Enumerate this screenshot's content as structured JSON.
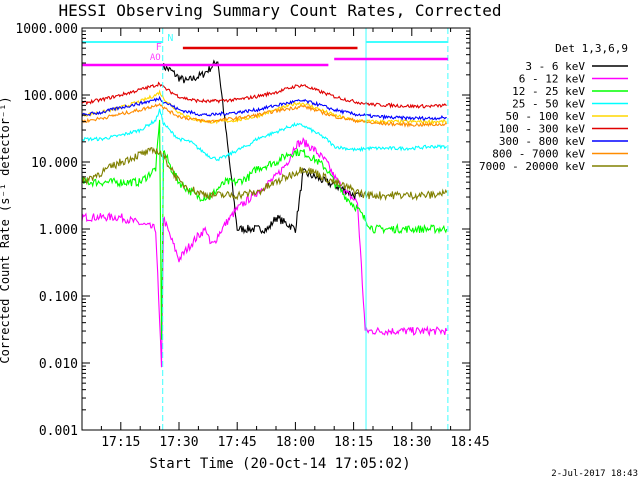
{
  "chart_data": {
    "type": "line",
    "title": "HESSI Observing Summary Count Rates, Corrected",
    "xlabel": "Start Time (20-Oct-14 17:05:02)",
    "ylabel": "Corrected Count Rate (s⁻¹ detector⁻¹)",
    "y_scale": "log",
    "ylim": [
      0.001,
      1000
    ],
    "xlim_minutes_after_17_00": [
      5,
      105
    ],
    "x_tick_labels": [
      "17:15",
      "17:30",
      "17:45",
      "18:00",
      "18:15",
      "18:30",
      "18:45"
    ],
    "x_tick_minutes": [
      15,
      30,
      45,
      60,
      75,
      90,
      105
    ],
    "y_tick_labels": [
      "0.001",
      "0.010",
      "0.100",
      "1.000",
      "10.000",
      "100.000",
      "1000.000"
    ],
    "y_tick_values": [
      0.001,
      0.01,
      0.1,
      1,
      10,
      100,
      1000
    ],
    "legend_title": "Det 1,3,6,9",
    "legend_position": "right",
    "footer": "2-Jul-2017 18:43",
    "flag_labels": {
      "F": "F",
      "N": "N",
      "AO": "AO"
    },
    "flag_colors": {
      "F": "#ff40ff",
      "N": "#40ffff",
      "AO": "#ff40ff",
      "magenta_bar": "#ff00ff",
      "red_bar": "#e00000"
    },
    "series": [
      {
        "name": "3 - 6 keV",
        "color": "#000000",
        "x": [
          25.8,
          28,
          30,
          32,
          34,
          36,
          38,
          40,
          45,
          50,
          53,
          55,
          60,
          62,
          65,
          68,
          70,
          73,
          75,
          77
        ],
        "values": [
          270,
          230,
          180,
          160,
          180,
          200,
          250,
          330,
          1.0,
          1.0,
          1.0,
          1.5,
          1.0,
          7,
          6,
          5,
          4.5,
          3.8,
          3.2,
          3.0
        ]
      },
      {
        "name": "6 - 12 keV",
        "color": "#ff00ff",
        "x": [
          5,
          10,
          15,
          20,
          24,
          25.5,
          26,
          27,
          29,
          30,
          32,
          35,
          37,
          38,
          39,
          40,
          42,
          45,
          48,
          50,
          55,
          58,
          60,
          62,
          65,
          68,
          70,
          73,
          76,
          78,
          80,
          85,
          90,
          95,
          99
        ],
        "values": [
          1.5,
          1.5,
          1.5,
          1.2,
          1.0,
          0.008,
          1.5,
          1.0,
          0.5,
          0.35,
          0.5,
          0.8,
          1.0,
          0.6,
          0.6,
          0.8,
          1.2,
          2.0,
          2.8,
          3.5,
          6,
          10,
          18,
          20,
          15,
          10,
          6,
          3.5,
          2.5,
          0.03,
          0.03,
          0.03,
          0.03,
          0.03,
          0.03
        ]
      },
      {
        "name": "12 - 25 keV",
        "color": "#00ff00",
        "x": [
          5,
          10,
          15,
          20,
          24,
          25,
          25.5,
          26,
          28,
          30,
          32,
          35,
          38,
          40,
          42,
          45,
          48,
          50,
          55,
          58,
          60,
          62,
          65,
          68,
          70,
          73,
          76,
          77.5,
          80,
          85,
          90,
          95,
          99
        ],
        "values": [
          5,
          5,
          5,
          5,
          8,
          40,
          0.02,
          15,
          8,
          5,
          4,
          3,
          3,
          4,
          5,
          5,
          6,
          8,
          10,
          13,
          14,
          14,
          11,
          8,
          5,
          3,
          2,
          1.5,
          1.0,
          1.0,
          1.0,
          1.0,
          1.0
        ]
      },
      {
        "name": "25 - 50 keV",
        "color": "#00ffff",
        "x": [
          5,
          10,
          15,
          20,
          24,
          25,
          26,
          28,
          30,
          33,
          35,
          38,
          40,
          42,
          45,
          48,
          50,
          55,
          58,
          60,
          62,
          65,
          68,
          70,
          73,
          76,
          78,
          80,
          85,
          90,
          95,
          99
        ],
        "values": [
          22,
          22,
          25,
          30,
          42,
          60,
          38,
          28,
          22,
          20,
          16,
          12,
          11,
          12,
          15,
          18,
          22,
          28,
          33,
          36,
          35,
          28,
          22,
          17,
          16,
          15,
          16,
          16,
          16,
          16,
          17,
          17
        ]
      },
      {
        "name": "50 - 100 keV",
        "color": "#ffd700",
        "x": [
          5,
          10,
          15,
          20,
          24,
          25,
          26,
          28,
          30,
          33,
          35,
          38,
          40,
          45,
          50,
          55,
          60,
          62,
          65,
          70,
          75,
          80,
          85,
          90,
          95,
          99
        ],
        "values": [
          50,
          55,
          65,
          80,
          100,
          110,
          90,
          70,
          55,
          45,
          42,
          40,
          40,
          42,
          48,
          60,
          75,
          75,
          65,
          50,
          42,
          40,
          40,
          40,
          40,
          40
        ]
      },
      {
        "name": "100 - 300 keV",
        "color": "#e00000",
        "x": [
          5,
          10,
          15,
          20,
          24,
          25,
          26,
          28,
          30,
          33,
          35,
          38,
          40,
          45,
          50,
          55,
          60,
          62,
          65,
          70,
          75,
          80,
          85,
          90,
          95,
          99
        ],
        "values": [
          75,
          85,
          100,
          120,
          140,
          150,
          130,
          110,
          95,
          85,
          82,
          80,
          82,
          85,
          95,
          110,
          135,
          140,
          120,
          95,
          80,
          72,
          70,
          68,
          68,
          70
        ]
      },
      {
        "name": "300 - 800 keV",
        "color": "#0000ff",
        "x": [
          5,
          10,
          15,
          20,
          24,
          25,
          26,
          28,
          30,
          33,
          35,
          38,
          40,
          45,
          50,
          55,
          60,
          62,
          65,
          70,
          75,
          80,
          85,
          90,
          95,
          99
        ],
        "values": [
          50,
          55,
          65,
          75,
          85,
          90,
          80,
          70,
          60,
          55,
          52,
          50,
          52,
          55,
          60,
          70,
          80,
          82,
          75,
          60,
          52,
          48,
          46,
          45,
          45,
          46
        ]
      },
      {
        "name": "800 - 7000 keV",
        "color": "#ff8c00",
        "x": [
          5,
          10,
          15,
          20,
          24,
          25,
          26,
          28,
          30,
          33,
          35,
          38,
          40,
          45,
          50,
          55,
          60,
          62,
          65,
          70,
          75,
          80,
          85,
          90,
          95,
          99
        ],
        "values": [
          40,
          45,
          52,
          60,
          70,
          75,
          65,
          55,
          48,
          44,
          42,
          40,
          42,
          45,
          50,
          58,
          65,
          68,
          60,
          48,
          42,
          38,
          37,
          36,
          36,
          37
        ]
      },
      {
        "name": "7000 - 20000 keV",
        "color": "#808000",
        "x": [
          5,
          10,
          15,
          20,
          24,
          25,
          26,
          28,
          30,
          33,
          35,
          38,
          40,
          45,
          50,
          55,
          60,
          62,
          65,
          70,
          75,
          78,
          80,
          85,
          90,
          95,
          99
        ],
        "values": [
          5,
          7,
          10,
          13,
          15,
          14,
          12,
          8,
          5,
          4,
          3.5,
          3.2,
          3.2,
          3.2,
          3.5,
          5,
          7,
          8,
          7,
          5,
          3.8,
          3.2,
          3.2,
          3.2,
          3.2,
          3.2,
          3.5
        ]
      }
    ]
  }
}
